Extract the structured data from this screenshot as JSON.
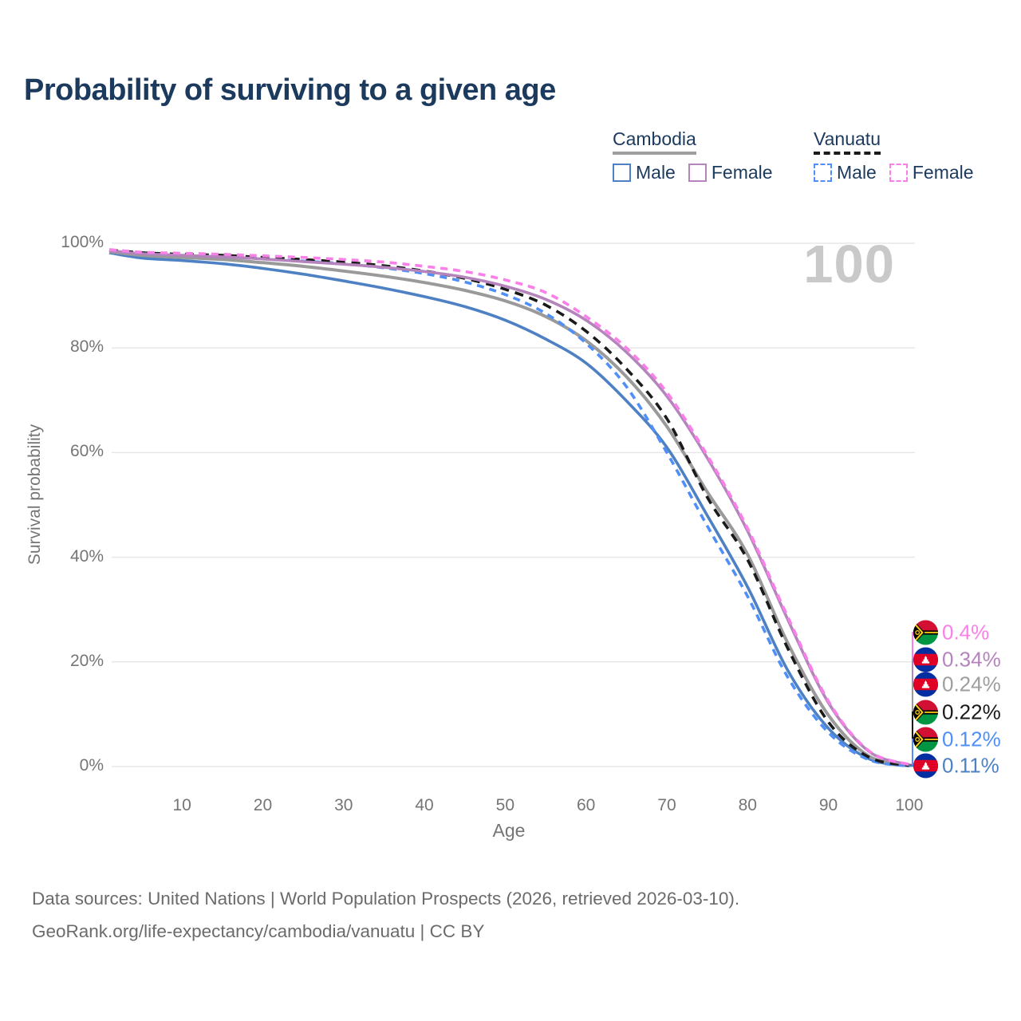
{
  "title": "Probability of surviving to a given age",
  "watermark": "100",
  "legend": {
    "groups": [
      {
        "label": "Cambodia",
        "line_style": "solid",
        "underline_color": "#9e9e9e",
        "items": [
          {
            "label": "Male",
            "series": "cambodia-male"
          },
          {
            "label": "Female",
            "series": "cambodia-female"
          }
        ]
      },
      {
        "label": "Vanuatu",
        "line_style": "dashed",
        "underline_color": "#1a1a1a",
        "items": [
          {
            "label": "Male",
            "series": "vanuatu-male"
          },
          {
            "label": "Female",
            "series": "vanuatu-female"
          }
        ]
      }
    ]
  },
  "y_axis": {
    "label": "Survival probability",
    "ticks": [
      "100%",
      "80%",
      "60%",
      "40%",
      "20%",
      "0%"
    ]
  },
  "x_axis": {
    "label": "Age",
    "ticks": [
      10,
      20,
      30,
      40,
      50,
      60,
      70,
      80,
      90,
      100
    ]
  },
  "end_labels": [
    {
      "value": "0.4%",
      "flag": "vanuatu",
      "series": "vanuatu-female",
      "color": "#fa7fe8"
    },
    {
      "value": "0.34%",
      "flag": "cambodia",
      "series": "cambodia-female",
      "color": "#b584bd"
    },
    {
      "value": "0.24%",
      "flag": "cambodia",
      "series": "cambodia-total",
      "color": "#9e9e9e"
    },
    {
      "value": "0.22%",
      "flag": "vanuatu",
      "series": "vanuatu-total",
      "color": "#1a1a1a"
    },
    {
      "value": "0.12%",
      "flag": "vanuatu",
      "series": "vanuatu-male",
      "color": "#4f8ff7"
    },
    {
      "value": "0.11%",
      "flag": "cambodia",
      "series": "cambodia-male",
      "color": "#4e81c4"
    }
  ],
  "footer": {
    "line1": "Data sources: United Nations | World Population Prospects (2026, retrieved 2026-03-10).",
    "line2": "GeoRank.org/life-expectancy/cambodia/vanuatu | CC BY"
  },
  "chart_data": {
    "type": "line",
    "title": "Probability of surviving to a given age",
    "xlabel": "Age",
    "ylabel": "Survival probability",
    "xlim": [
      1,
      100
    ],
    "ylim": [
      0,
      100
    ],
    "grid": "horizontal",
    "legend_position": "top-right",
    "x": [
      1,
      5,
      10,
      15,
      20,
      25,
      30,
      35,
      40,
      45,
      50,
      55,
      60,
      65,
      70,
      75,
      80,
      85,
      90,
      95,
      100
    ],
    "series": [
      {
        "id": "cambodia-male",
        "name": "Cambodia Male",
        "color": "#4e81c4",
        "dash": "solid",
        "values": [
          98.2,
          97.2,
          96.7,
          96.1,
          95.2,
          94.1,
          92.8,
          91.4,
          89.8,
          87.9,
          85.3,
          81.7,
          77.1,
          69.9,
          61.0,
          48.0,
          34.3,
          18.3,
          7.3,
          1.5,
          0.11
        ]
      },
      {
        "id": "cambodia-total",
        "name": "Cambodia",
        "color": "#9a9a9a",
        "dash": "solid",
        "values": [
          98.4,
          97.7,
          97.3,
          96.9,
          96.3,
          95.6,
          94.7,
          93.7,
          92.5,
          91.0,
          89.0,
          86.0,
          81.4,
          74.5,
          65.0,
          52.5,
          40.5,
          23.5,
          9.8,
          2.0,
          0.24
        ]
      },
      {
        "id": "vanuatu-male",
        "name": "Vanuatu Male",
        "color": "#4f8ff7",
        "dash": "dashed",
        "values": [
          98.6,
          98.1,
          97.8,
          97.5,
          97.1,
          96.6,
          96.1,
          95.3,
          94.2,
          92.6,
          90.2,
          86.6,
          80.9,
          72.6,
          60.0,
          46.0,
          32.5,
          17.0,
          6.5,
          1.3,
          0.12
        ]
      },
      {
        "id": "vanuatu-total",
        "name": "Vanuatu",
        "color": "#1a1a1a",
        "dash": "dashed",
        "values": [
          98.7,
          98.2,
          97.9,
          97.7,
          97.3,
          96.9,
          96.4,
          95.7,
          94.7,
          93.3,
          91.2,
          88.2,
          83.2,
          76.0,
          66.5,
          51.5,
          39.5,
          22.5,
          8.5,
          1.8,
          0.22
        ]
      },
      {
        "id": "cambodia-female",
        "name": "Cambodia Female",
        "color": "#b584bd",
        "dash": "solid",
        "values": [
          98.6,
          98.0,
          97.7,
          97.4,
          97.0,
          96.5,
          96.0,
          95.4,
          94.6,
          93.5,
          91.8,
          89.3,
          85.3,
          79.2,
          70.8,
          59.0,
          45.0,
          28.0,
          12.2,
          2.9,
          0.34
        ]
      },
      {
        "id": "vanuatu-female",
        "name": "Vanuatu Female",
        "color": "#fa7fe8",
        "dash": "dashed",
        "values": [
          98.8,
          98.3,
          98.1,
          97.9,
          97.6,
          97.3,
          96.9,
          96.4,
          95.6,
          94.6,
          93.0,
          90.6,
          86.0,
          80.0,
          71.5,
          59.5,
          45.5,
          28.5,
          12.5,
          3.0,
          0.4
        ]
      }
    ]
  }
}
